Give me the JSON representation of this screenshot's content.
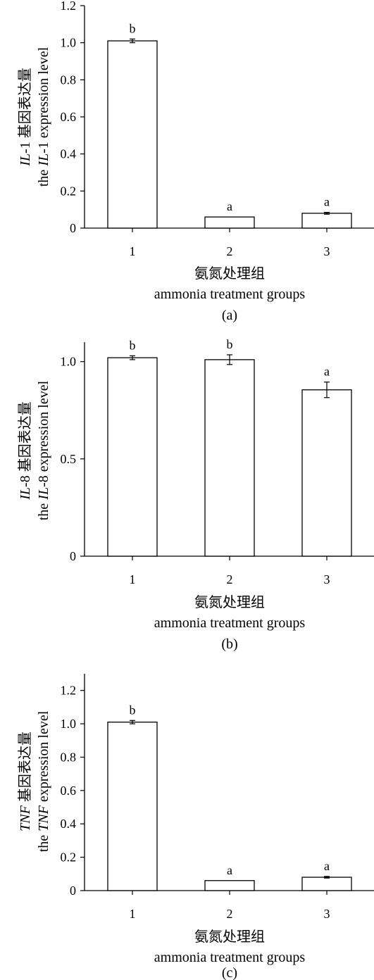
{
  "chart_data": [
    {
      "type": "bar",
      "panel_label": "(a)",
      "categories": [
        "1",
        "2",
        "3"
      ],
      "values": [
        1.01,
        0.06,
        0.08
      ],
      "errors": [
        0.01,
        0.0,
        0.005
      ],
      "significance": [
        "b",
        "a",
        "a"
      ],
      "ylim": [
        0,
        1.2
      ],
      "yticks": [
        "0",
        "0.2",
        "0.4",
        "0.6",
        "0.8",
        "1.0",
        "1.2"
      ],
      "ytick_values": [
        0,
        0.2,
        0.4,
        0.6,
        0.8,
        1.0,
        1.2
      ],
      "ylabel_cn_gene": "IL",
      "ylabel_cn_gene_suffix": "-1",
      "ylabel_cn_text": "基因表达量",
      "ylabel_en_prefix": "the ",
      "ylabel_en_gene": "IL",
      "ylabel_en_gene_suffix": "-1",
      "ylabel_en_rest": " expression level",
      "xlabel_cn": "氨氮处理组",
      "xlabel_en": "ammonia treatment groups"
    },
    {
      "type": "bar",
      "panel_label": "(b)",
      "categories": [
        "1",
        "2",
        "3"
      ],
      "values": [
        1.02,
        1.01,
        0.855
      ],
      "errors": [
        0.01,
        0.025,
        0.04
      ],
      "significance": [
        "b",
        "b",
        "a"
      ],
      "ylim": [
        0,
        1.1
      ],
      "yticks": [
        "0",
        "0.5",
        "1.0"
      ],
      "ytick_values": [
        0,
        0.5,
        1.0
      ],
      "ylabel_cn_gene": "IL",
      "ylabel_cn_gene_suffix": "-8",
      "ylabel_cn_text": "基因表达量",
      "ylabel_en_prefix": "the ",
      "ylabel_en_gene": "IL",
      "ylabel_en_gene_suffix": "-8",
      "ylabel_en_rest": " expression level",
      "xlabel_cn": "氨氮处理组",
      "xlabel_en": "ammonia treatment groups"
    },
    {
      "type": "bar",
      "panel_label": "(c)",
      "categories": [
        "1",
        "2",
        "3"
      ],
      "values": [
        1.01,
        0.06,
        0.08
      ],
      "errors": [
        0.01,
        0.0,
        0.005
      ],
      "significance": [
        "b",
        "a",
        "a"
      ],
      "ylim": [
        0,
        1.3
      ],
      "yticks": [
        "0",
        "0.2",
        "0.4",
        "0.6",
        "0.8",
        "1.0",
        "1.2"
      ],
      "ytick_values": [
        0,
        0.2,
        0.4,
        0.6,
        0.8,
        1.0,
        1.2
      ],
      "ylabel_cn_gene": "TNF",
      "ylabel_cn_gene_suffix": "",
      "ylabel_cn_text": "基因表达量",
      "ylabel_en_prefix": "the ",
      "ylabel_en_gene": "TNF",
      "ylabel_en_gene_suffix": "",
      "ylabel_en_rest": " expression level",
      "xlabel_cn": "氨氮处理组",
      "xlabel_en": "ammonia treatment groups"
    }
  ]
}
